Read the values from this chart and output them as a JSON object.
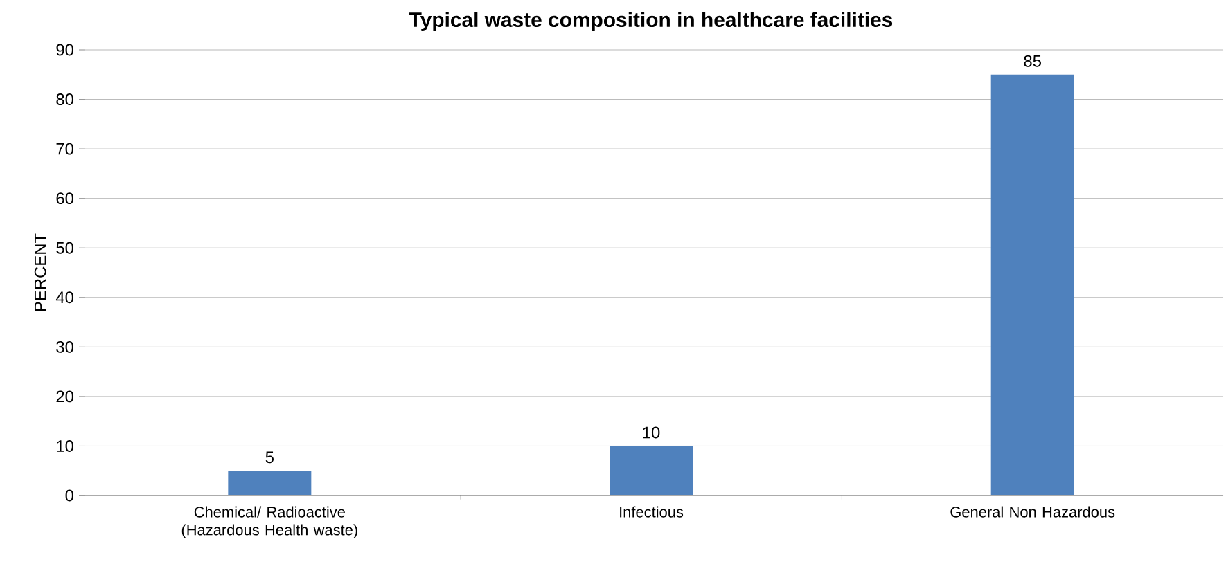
{
  "chart_data": {
    "type": "bar",
    "title": "Typical waste composition in healthcare facilities",
    "ylabel": "PERCENT",
    "categories": [
      "Chemical/ Radioactive (Hazardous Health waste)",
      "Infectious",
      "General Non Hazardous"
    ],
    "values": [
      5,
      10,
      85
    ],
    "color": "#4f81bd",
    "ylim": [
      0,
      90
    ],
    "yticks": [
      0,
      10,
      20,
      30,
      40,
      50,
      60,
      70,
      80,
      90
    ],
    "grid": "y",
    "data_labels": true
  }
}
